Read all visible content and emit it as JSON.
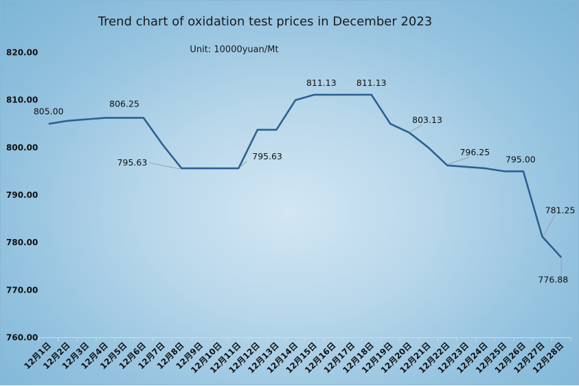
{
  "chart_data": {
    "type": "line",
    "title": "Trend chart of oxidation test prices in December 2023",
    "subtitle": "Unit:  10000yuan/Mt",
    "xlabel": "",
    "ylabel": "",
    "ylim": [
      760,
      820
    ],
    "yticks": [
      "760.00",
      "770.00",
      "780.00",
      "790.00",
      "800.00",
      "810.00",
      "820.00"
    ],
    "grid": false,
    "categories": [
      "12月1日",
      "12月2日",
      "12月3日",
      "12月4日",
      "12月5日",
      "12月6日",
      "12月7日",
      "12月8日",
      "12月9日",
      "12月10日",
      "12月11日",
      "12月12日",
      "12月13日",
      "12月14日",
      "12月15日",
      "12月16日",
      "12月17日",
      "12月18日",
      "12月19日",
      "12月20日",
      "12月21日",
      "12月22日",
      "12月23日",
      "12月24日",
      "12月25日",
      "12月26日",
      "12月27日",
      "12月28日"
    ],
    "series": [
      {
        "values": [
          805.0,
          805.63,
          805.94,
          806.25,
          806.25,
          806.25,
          800.63,
          795.63,
          795.63,
          795.63,
          795.63,
          803.75,
          803.75,
          810.0,
          811.13,
          811.13,
          811.13,
          811.13,
          805.0,
          803.13,
          800.0,
          796.25,
          795.94,
          795.63,
          795.0,
          795.0,
          781.25,
          776.88
        ]
      }
    ],
    "data_labels": [
      {
        "index": 0,
        "text": "805.00"
      },
      {
        "index": 5,
        "text": "806.25"
      },
      {
        "index": 7,
        "text": "795.63"
      },
      {
        "index": 10,
        "text": "795.63"
      },
      {
        "index": 14,
        "text": "811.13"
      },
      {
        "index": 17,
        "text": "811.13"
      },
      {
        "index": 19,
        "text": "803.13"
      },
      {
        "index": 21,
        "text": "796.25"
      },
      {
        "index": 25,
        "text": "795.00"
      },
      {
        "index": 26,
        "text": "781.25"
      },
      {
        "index": 27,
        "text": "776.88"
      }
    ],
    "colors": {
      "line": "#2a5f92"
    }
  }
}
